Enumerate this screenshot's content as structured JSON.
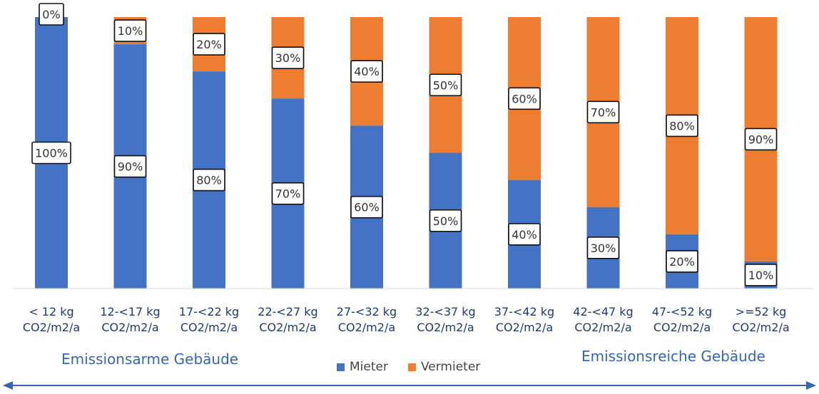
{
  "chart_data": {
    "type": "bar",
    "stacked": true,
    "categories": [
      [
        "< 12 kg",
        "CO2/m2/a"
      ],
      [
        "12-<17 kg",
        "CO2/m2/a"
      ],
      [
        "17-<22 kg",
        "CO2/m2/a"
      ],
      [
        "22-<27 kg",
        "CO2/m2/a"
      ],
      [
        "27-<32 kg",
        "CO2/m2/a"
      ],
      [
        "32-<37 kg",
        "CO2/m2/a"
      ],
      [
        "37-<42 kg",
        "CO2/m2/a"
      ],
      [
        "42-<47 kg",
        "CO2/m2/a"
      ],
      [
        "47-<52 kg",
        "CO2/m2/a"
      ],
      [
        ">=52 kg",
        "CO2/m2/a"
      ]
    ],
    "series": [
      {
        "name": "Mieter",
        "color": "#4472c4",
        "values": [
          100,
          90,
          80,
          70,
          60,
          50,
          40,
          30,
          20,
          10
        ]
      },
      {
        "name": "Vermieter",
        "color": "#ed7d31",
        "values": [
          0,
          10,
          20,
          30,
          40,
          50,
          60,
          70,
          80,
          90
        ]
      }
    ],
    "value_suffix": "%",
    "ylim": [
      0,
      100
    ],
    "grid": false,
    "legend": "bottom",
    "title": "",
    "xlabel": "",
    "ylabel": ""
  },
  "footer": {
    "left_label": "Emissionsarme Gebäude",
    "right_label": "Emissionsreiche Gebäude",
    "arrow_color": "#3565b5"
  }
}
